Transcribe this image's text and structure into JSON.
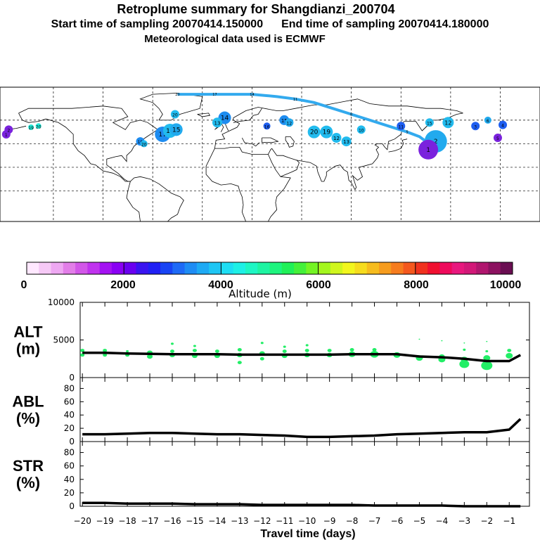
{
  "header": {
    "title": "Retroplume summary for Shangdianzi_200704",
    "start_label": "Start time of sampling 20070414.150000",
    "end_label": "End time of sampling 20070414.180000",
    "met_label": "Meteorological data used is ECMWF"
  },
  "colors": {
    "track": "#33aaee",
    "land": "#000000",
    "altitude_points": "#22ee66",
    "lines": "#000000"
  },
  "map": {
    "description_free": true,
    "track_labels": [
      "20",
      "19",
      "18",
      "17",
      "16",
      "15",
      "14",
      "13",
      "12",
      "11",
      "10",
      "9",
      "8",
      "7",
      "6",
      "5",
      "4",
      "3",
      "2",
      "1"
    ],
    "clusters": [
      {
        "label": "20",
        "lon": -152,
        "lat": 55,
        "color": "#22e8d8",
        "size": 4
      },
      {
        "label": "19",
        "lon": -158,
        "lat": 54,
        "color": "#22e8d8",
        "size": 4
      },
      {
        "label": "1",
        "lon": -178,
        "lat": 48,
        "color": "#7a22dd",
        "size": 6
      },
      {
        "label": "2",
        "lon": -176,
        "lat": 52,
        "color": "#7a22dd",
        "size": 6
      },
      {
        "label": "19",
        "lon": -70,
        "lat": 42,
        "color": "#1e8cf0",
        "size": 6
      },
      {
        "label": "20",
        "lon": -67,
        "lat": 40,
        "color": "#22bbee",
        "size": 5
      },
      {
        "label": "17",
        "lon": -52,
        "lat": 48,
        "color": "#1e8cf0",
        "size": 11
      },
      {
        "label": "16",
        "lon": -46,
        "lat": 51,
        "color": "#22bbee",
        "size": 10
      },
      {
        "label": "15",
        "lon": -41,
        "lat": 52,
        "color": "#22aaee",
        "size": 9
      },
      {
        "label": "20",
        "lon": -42,
        "lat": 65,
        "color": "#22bbee",
        "size": 6
      },
      {
        "label": "14",
        "lon": -2,
        "lat": 62,
        "color": "#1e8cf0",
        "size": 9
      },
      {
        "label": "13",
        "lon": -8,
        "lat": 58,
        "color": "#22bbee",
        "size": 7
      },
      {
        "label": "16",
        "lon": 32,
        "lat": 55,
        "color": "#1e5ef0",
        "size": 5
      },
      {
        "label": "15",
        "lon": 46,
        "lat": 60,
        "color": "#1e8cf0",
        "size": 7
      },
      {
        "label": "12",
        "lon": 50,
        "lat": 58,
        "color": "#22aaee",
        "size": 6
      },
      {
        "label": "20",
        "lon": 70,
        "lat": 50,
        "color": "#22bbee",
        "size": 9
      },
      {
        "label": "19",
        "lon": 80,
        "lat": 50,
        "color": "#22bbee",
        "size": 9
      },
      {
        "label": "12",
        "lon": 88,
        "lat": 45,
        "color": "#22bbee",
        "size": 7
      },
      {
        "label": "13",
        "lon": 96,
        "lat": 42,
        "color": "#22bbee",
        "size": 7
      },
      {
        "label": "10",
        "lon": 108,
        "lat": 52,
        "color": "#22bbee",
        "size": 6
      },
      {
        "label": "11",
        "lon": 140,
        "lat": 55,
        "color": "#1e5ef0",
        "size": 6
      },
      {
        "label": "15",
        "lon": 163,
        "lat": 58,
        "color": "#22bbee",
        "size": 6
      },
      {
        "label": "12",
        "lon": 178,
        "lat": 58,
        "color": "#22bbee",
        "size": 8
      },
      {
        "label": "2",
        "lon": 168,
        "lat": 42,
        "color": "#22aaee",
        "size": 16
      },
      {
        "label": "1",
        "lon": 162,
        "lat": 35,
        "color": "#7a22dd",
        "size": 14
      },
      {
        "label": "3",
        "lon": 200,
        "lat": 55,
        "color": "#1e5ef0",
        "size": 6
      },
      {
        "label": "4",
        "lon": 222,
        "lat": 56,
        "color": "#1e5ef0",
        "size": 6
      },
      {
        "label": "5",
        "lon": 218,
        "lat": 45,
        "color": "#7a22dd",
        "size": 6
      },
      {
        "label": "6",
        "lon": 210,
        "lat": 60,
        "color": "#22aaee",
        "size": 5
      }
    ]
  },
  "colorbar": {
    "tick_labels": [
      "0",
      "2000",
      "4000",
      "6000",
      "8000",
      "10000"
    ],
    "title": "Altitude (m)",
    "colors": [
      "#ffe8ff",
      "#f6c9f6",
      "#eea8f2",
      "#e27ee8",
      "#d257e8",
      "#c033ee",
      "#a412f2",
      "#8a00f4",
      "#6a00f0",
      "#3a14f0",
      "#2020f4",
      "#1844f4",
      "#1e6af6",
      "#1e8cf4",
      "#1eaaf4",
      "#1ec6f4",
      "#1edef4",
      "#1ef0e6",
      "#1ef6c4",
      "#1ef4a2",
      "#1ef47e",
      "#20f058",
      "#44f03a",
      "#74f424",
      "#a4f61e",
      "#d0f61e",
      "#f2f61e",
      "#f6dc1e",
      "#f6bc1e",
      "#f69c1e",
      "#f67c1e",
      "#f4581e",
      "#f0321e",
      "#f01030",
      "#ee0a5c",
      "#e8187e",
      "#d21878",
      "#b0166e",
      "#8c1260",
      "#6a0e52"
    ]
  },
  "chart_data": [
    {
      "type": "scatter",
      "panel": "ALT",
      "ylabel": "ALT\n(m)",
      "ylabel_lines": [
        "ALT",
        "(m)"
      ],
      "ylim": [
        0,
        10000
      ],
      "yticks": [
        "10000",
        "5000",
        "0"
      ],
      "ytick_values": [
        10000,
        5000,
        0
      ],
      "x": [
        -20,
        -19,
        -18,
        -17,
        -16,
        -15,
        -14,
        -13,
        -12,
        -11,
        -10,
        -9,
        -8,
        -7,
        -6,
        -5,
        -4,
        -3,
        -2,
        -1,
        -0.5
      ],
      "values": [
        3300,
        3300,
        3200,
        3150,
        3100,
        3100,
        3100,
        3050,
        3050,
        3050,
        3050,
        3050,
        3100,
        3100,
        3100,
        2800,
        2700,
        2500,
        2200,
        2200,
        3000
      ],
      "points": [
        {
          "x": -20,
          "y": 3000,
          "s": 3
        },
        {
          "x": -20,
          "y": 3600,
          "s": 3
        },
        {
          "x": -19,
          "y": 3000,
          "s": 3
        },
        {
          "x": -19,
          "y": 3600,
          "s": 3
        },
        {
          "x": -18,
          "y": 3000,
          "s": 3
        },
        {
          "x": -18,
          "y": 3500,
          "s": 2
        },
        {
          "x": -17,
          "y": 2800,
          "s": 4
        },
        {
          "x": -17,
          "y": 3300,
          "s": 4
        },
        {
          "x": -16,
          "y": 3000,
          "s": 4
        },
        {
          "x": -16,
          "y": 3500,
          "s": 3
        },
        {
          "x": -16,
          "y": 4500,
          "s": 2
        },
        {
          "x": -15,
          "y": 2900,
          "s": 4
        },
        {
          "x": -15,
          "y": 3600,
          "s": 3
        },
        {
          "x": -15,
          "y": 4200,
          "s": 2
        },
        {
          "x": -14,
          "y": 2900,
          "s": 4
        },
        {
          "x": -14,
          "y": 3500,
          "s": 3
        },
        {
          "x": -13,
          "y": 2000,
          "s": 3
        },
        {
          "x": -13,
          "y": 3000,
          "s": 4
        },
        {
          "x": -13,
          "y": 3700,
          "s": 3
        },
        {
          "x": -12,
          "y": 2500,
          "s": 3
        },
        {
          "x": -12,
          "y": 3200,
          "s": 4
        },
        {
          "x": -12,
          "y": 4600,
          "s": 2
        },
        {
          "x": -11,
          "y": 2900,
          "s": 4
        },
        {
          "x": -11,
          "y": 3500,
          "s": 3
        },
        {
          "x": -11,
          "y": 4100,
          "s": 2
        },
        {
          "x": -10,
          "y": 3000,
          "s": 4
        },
        {
          "x": -10,
          "y": 3600,
          "s": 3
        },
        {
          "x": -10,
          "y": 4300,
          "s": 2
        },
        {
          "x": -9,
          "y": 3000,
          "s": 4
        },
        {
          "x": -9,
          "y": 3600,
          "s": 3
        },
        {
          "x": -8,
          "y": 3100,
          "s": 5
        },
        {
          "x": -8,
          "y": 3700,
          "s": 3
        },
        {
          "x": -7,
          "y": 3100,
          "s": 6
        },
        {
          "x": -7,
          "y": 3700,
          "s": 3
        },
        {
          "x": -6,
          "y": 3000,
          "s": 5
        },
        {
          "x": -5,
          "y": 2600,
          "s": 5
        },
        {
          "x": -5,
          "y": 5100,
          "s": 1
        },
        {
          "x": -4,
          "y": 2400,
          "s": 5
        },
        {
          "x": -4,
          "y": 2800,
          "s": 4
        },
        {
          "x": -4,
          "y": 4900,
          "s": 1
        },
        {
          "x": -3,
          "y": 1800,
          "s": 7
        },
        {
          "x": -3,
          "y": 2400,
          "s": 5
        },
        {
          "x": -3,
          "y": 3700,
          "s": 2
        },
        {
          "x": -3,
          "y": 4600,
          "s": 1
        },
        {
          "x": -2,
          "y": 1600,
          "s": 8
        },
        {
          "x": -2,
          "y": 2600,
          "s": 5
        },
        {
          "x": -2,
          "y": 3500,
          "s": 2
        },
        {
          "x": -2,
          "y": 4800,
          "s": 1
        },
        {
          "x": -1,
          "y": 2900,
          "s": 5
        },
        {
          "x": -1,
          "y": 3600,
          "s": 3
        }
      ]
    },
    {
      "type": "line",
      "panel": "ABL",
      "ylabel_lines": [
        "ABL",
        "(%)"
      ],
      "ylim": [
        0,
        90
      ],
      "yticks": [
        "80",
        "60",
        "40",
        "20",
        "0"
      ],
      "ytick_values": [
        80,
        60,
        40,
        20,
        0
      ],
      "x": [
        -20,
        -19,
        -18,
        -17,
        -16,
        -15,
        -14,
        -13,
        -12,
        -11,
        -10,
        -9,
        -8,
        -7,
        -6,
        -5,
        -4,
        -3,
        -2,
        -1,
        -0.5
      ],
      "values": [
        11,
        11,
        12,
        13,
        13,
        12,
        11,
        11,
        10,
        9,
        7,
        7,
        8,
        9,
        11,
        12,
        13,
        14,
        14,
        18,
        34
      ]
    },
    {
      "type": "line",
      "panel": "STR",
      "ylabel_lines": [
        "STR",
        "(%)"
      ],
      "ylim": [
        0,
        90
      ],
      "yticks": [
        "80",
        "60",
        "40",
        "20",
        "0"
      ],
      "ytick_values": [
        80,
        60,
        40,
        20,
        0
      ],
      "x": [
        -20,
        -19,
        -18,
        -17,
        -16,
        -15,
        -14,
        -13,
        -12,
        -11,
        -10,
        -9,
        -8,
        -7,
        -6,
        -5,
        -4,
        -3,
        -2,
        -1,
        -0.5
      ],
      "values": [
        5,
        5,
        4,
        4,
        4,
        3,
        3,
        3,
        2,
        2,
        2,
        2,
        2,
        1,
        1,
        1,
        1,
        0,
        0,
        0,
        0
      ],
      "xlabel": "Travel time (days)",
      "xtick_labels": [
        "-20",
        "-19",
        "-18",
        "-17",
        "-16",
        "-15",
        "-14",
        "-13",
        "-12",
        "-11",
        "-10",
        "-9",
        "-8",
        "-7",
        "-6",
        "-5",
        "-4",
        "-3",
        "-2",
        "-1"
      ],
      "xlim": [
        -20.1,
        -0.1
      ]
    }
  ]
}
